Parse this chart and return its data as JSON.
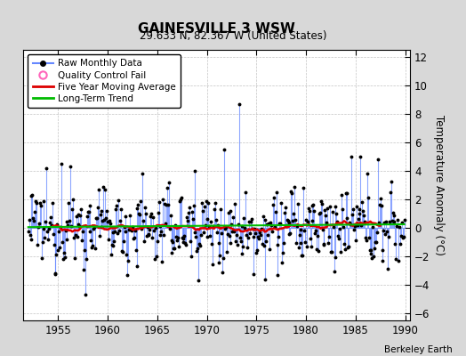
{
  "title": "GAINESVILLE 3 WSW",
  "subtitle": "29.633 N, 82.367 W (United States)",
  "ylabel": "Temperature Anomaly (°C)",
  "credit": "Berkeley Earth",
  "xlim": [
    1951.5,
    1990.5
  ],
  "ylim": [
    -6.5,
    12.5
  ],
  "yticks": [
    -6,
    -4,
    -2,
    0,
    2,
    4,
    6,
    8,
    10,
    12
  ],
  "xticks": [
    1955,
    1960,
    1965,
    1970,
    1975,
    1980,
    1985,
    1990
  ],
  "bg_color": "#d8d8d8",
  "plot_bg_color": "#ffffff",
  "line_color": "#6688ff",
  "dot_color": "#000000",
  "ma_color": "#dd0000",
  "trend_color": "#00bb00",
  "qc_color": "#ff66bb",
  "legend_entries": [
    "Raw Monthly Data",
    "Quality Control Fail",
    "Five Year Moving Average",
    "Long-Term Trend"
  ],
  "start_year": 1952,
  "end_year": 1989,
  "seed": 12345
}
